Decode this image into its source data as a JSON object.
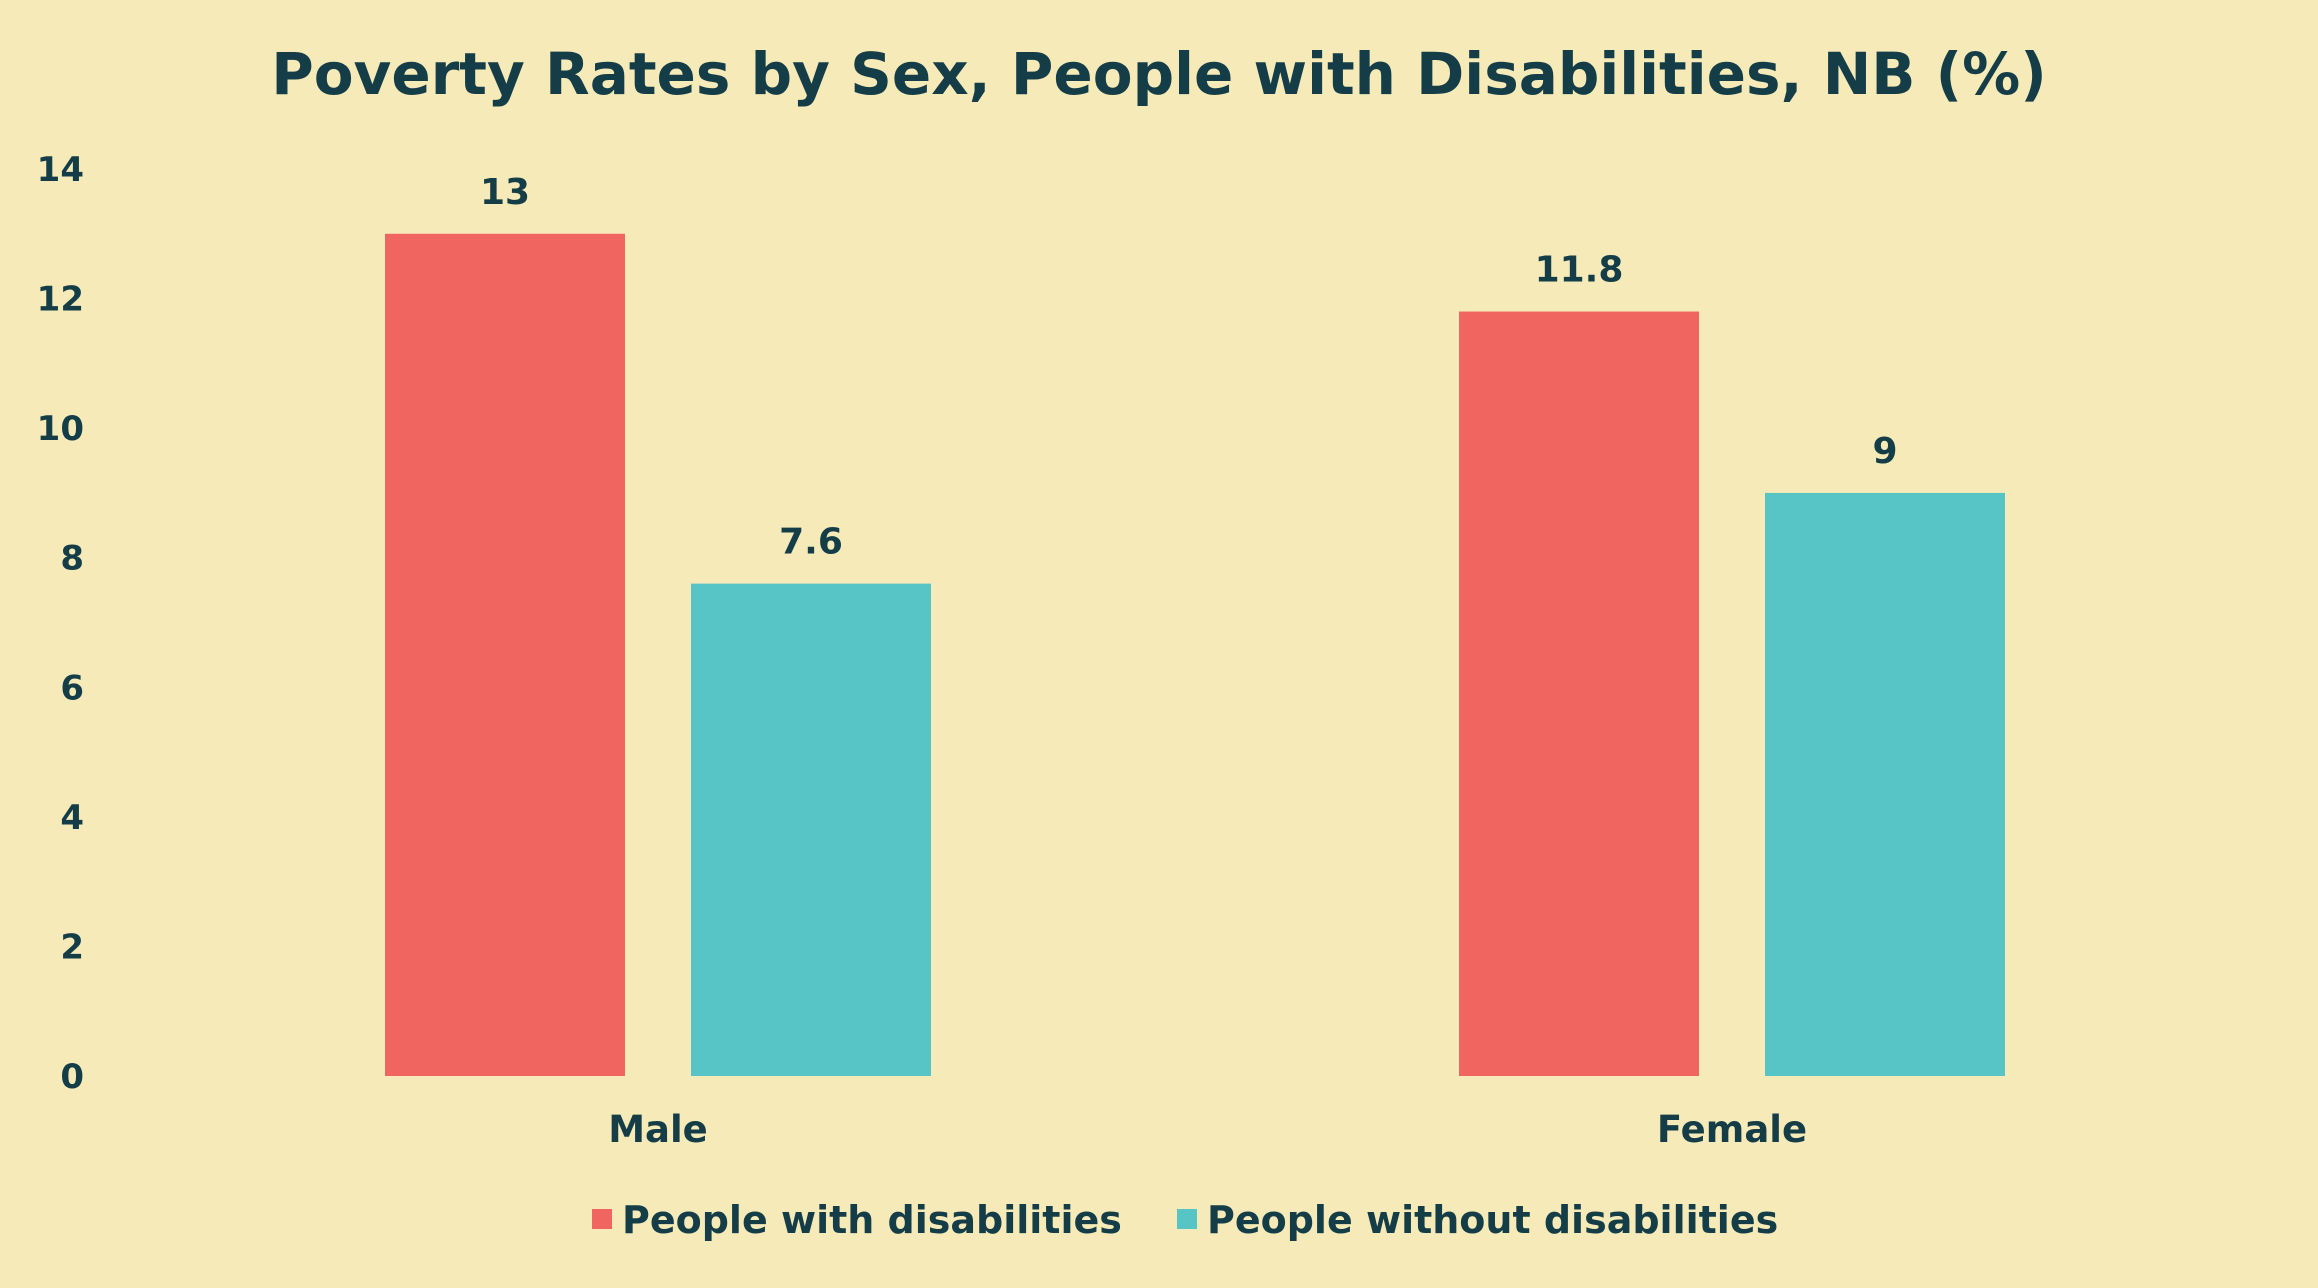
{
  "chart_data": {
    "type": "bar",
    "title": "Poverty Rates by Sex, People with Disabilities, NB (%)",
    "xlabel": "",
    "ylabel": "",
    "categories": [
      "Male",
      "Female"
    ],
    "series": [
      {
        "name": "People with disabilities",
        "values": [
          13,
          11.8
        ],
        "color": "#F0655F"
      },
      {
        "name": "People without disabilities",
        "values": [
          7.6,
          9
        ],
        "color": "#57C5C5"
      }
    ],
    "y_ticks": [
      0,
      2,
      4,
      6,
      8,
      10,
      12,
      14
    ],
    "ylim": [
      0,
      14
    ],
    "grid": false,
    "legend_position": "bottom-center"
  },
  "colors": {
    "background": "#F5EAB8",
    "text": "#143D47"
  }
}
